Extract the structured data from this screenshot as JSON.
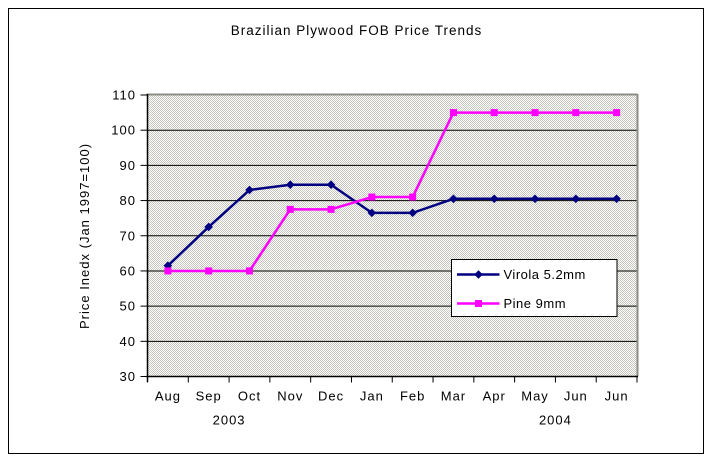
{
  "window": {
    "background": "#ffffff",
    "border_color": "#000000"
  },
  "chart_data": {
    "type": "line",
    "title": "Brazilian Plywood FOB Price Trends",
    "xlabel": "",
    "ylabel": "Price Inedx (Jan 1997=100)",
    "categories": [
      "Aug",
      "Sep",
      "Oct",
      "Nov",
      "Dec",
      "Jan",
      "Feb",
      "Mar",
      "Apr",
      "May",
      "Jun",
      "Jun"
    ],
    "year_labels": [
      {
        "label": "2003",
        "position_index": 1.5
      },
      {
        "label": "2004",
        "position_index": 9.5
      }
    ],
    "series": [
      {
        "name": "Virola 5.2mm",
        "color": "#000080",
        "marker": "diamond",
        "values": [
          61.5,
          72.5,
          83,
          84.5,
          84.5,
          76.5,
          76.5,
          80.5,
          80.5,
          80.5,
          80.5,
          80.5
        ]
      },
      {
        "name": "Pine 9mm",
        "color": "#ff00ff",
        "marker": "square",
        "values": [
          60,
          60,
          60,
          77.5,
          77.5,
          81,
          81,
          105,
          105,
          105,
          105,
          105
        ]
      }
    ],
    "ylim": [
      30,
      110
    ],
    "ytick_step": 10,
    "grid": true,
    "legend": {
      "position": "center-right",
      "background": "#ffffff",
      "border_color": "#000000"
    },
    "colors": {
      "plot_bg_checker": [
        "#ffffff",
        "#c6c6be"
      ],
      "plot_border": "#8c8c84",
      "axis": "#000000",
      "gridline": "#000000",
      "text": "#000000"
    }
  }
}
